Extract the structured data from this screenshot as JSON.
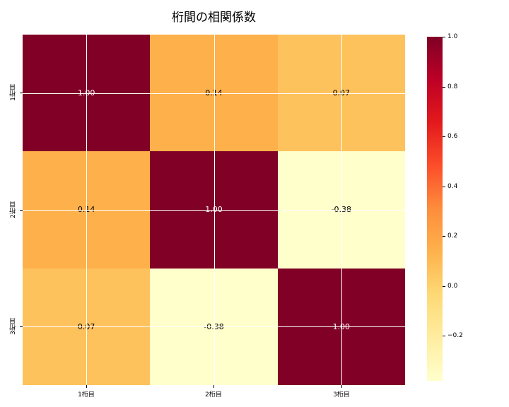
{
  "title": "桁間の相関係数",
  "axes": {
    "x_tick_labels": [
      "1桁目",
      "2桁目",
      "3桁目"
    ],
    "y_tick_labels": [
      "1桁目",
      "2桁目",
      "3桁目"
    ]
  },
  "cells": [
    {
      "text": "1.00",
      "bg": "#800026",
      "fg": "#ffffff"
    },
    {
      "text": "0.14",
      "bg": "#feb14b",
      "fg": "#000000"
    },
    {
      "text": "0.07",
      "bg": "#fec25d",
      "fg": "#000000"
    },
    {
      "text": "0.14",
      "bg": "#feb14b",
      "fg": "#000000"
    },
    {
      "text": "1.00",
      "bg": "#800026",
      "fg": "#ffffff"
    },
    {
      "text": "-0.38",
      "bg": "#ffffcc",
      "fg": "#000000"
    },
    {
      "text": "0.07",
      "bg": "#fec25d",
      "fg": "#000000"
    },
    {
      "text": "-0.38",
      "bg": "#ffffcc",
      "fg": "#000000"
    },
    {
      "text": "1.00",
      "bg": "#800026",
      "fg": "#ffffff"
    }
  ],
  "colorbar": {
    "vmin": -0.38,
    "vmax": 1.0,
    "gradient": [
      "#800026",
      "#bd0026",
      "#e31a1c",
      "#fc4e2a",
      "#fd8d3c",
      "#feb24c",
      "#fed976",
      "#ffeda0",
      "#ffffcc"
    ],
    "ticks": [
      {
        "value": 1.0,
        "label": "1.0"
      },
      {
        "value": 0.8,
        "label": "0.8"
      },
      {
        "value": 0.6,
        "label": "0.6"
      },
      {
        "value": 0.4,
        "label": "0.4"
      },
      {
        "value": 0.2,
        "label": "0.2"
      },
      {
        "value": 0.0,
        "label": "0.0"
      },
      {
        "value": -0.2,
        "label": "−0.2"
      }
    ]
  },
  "chart_data": {
    "type": "heatmap",
    "title": "桁間の相関係数",
    "x_labels": [
      "1桁目",
      "2桁目",
      "3桁目"
    ],
    "y_labels": [
      "1桁目",
      "2桁目",
      "3桁目"
    ],
    "matrix": [
      [
        1.0,
        0.14,
        0.07
      ],
      [
        0.14,
        1.0,
        -0.38
      ],
      [
        0.07,
        -0.38,
        1.0
      ]
    ],
    "annotations": [
      [
        "1.00",
        "0.14",
        "0.07"
      ],
      [
        "0.14",
        "1.00",
        "-0.38"
      ],
      [
        "0.07",
        "-0.38",
        "1.00"
      ]
    ],
    "colormap": "YlOrRd",
    "vmin": -0.38,
    "vmax": 1.0,
    "colorbar_tick_values": [
      1.0,
      0.8,
      0.6,
      0.4,
      0.2,
      0.0,
      -0.2
    ],
    "grid": true,
    "gridline_color": "#ffffff",
    "legend_position": "right-colorbar"
  }
}
